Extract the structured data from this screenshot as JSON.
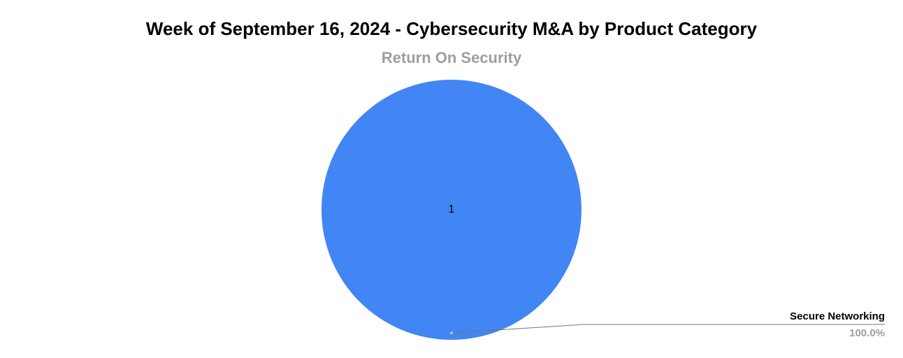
{
  "chart_data": {
    "type": "pie",
    "title": "Week of September 16, 2024 - Cybersecurity M&A by Product Category",
    "subtitle": "Return On Security",
    "categories": [
      "Secure Networking"
    ],
    "values": [
      1
    ],
    "percent_labels": [
      "100.0%"
    ],
    "colors": [
      "#4285f4"
    ]
  }
}
